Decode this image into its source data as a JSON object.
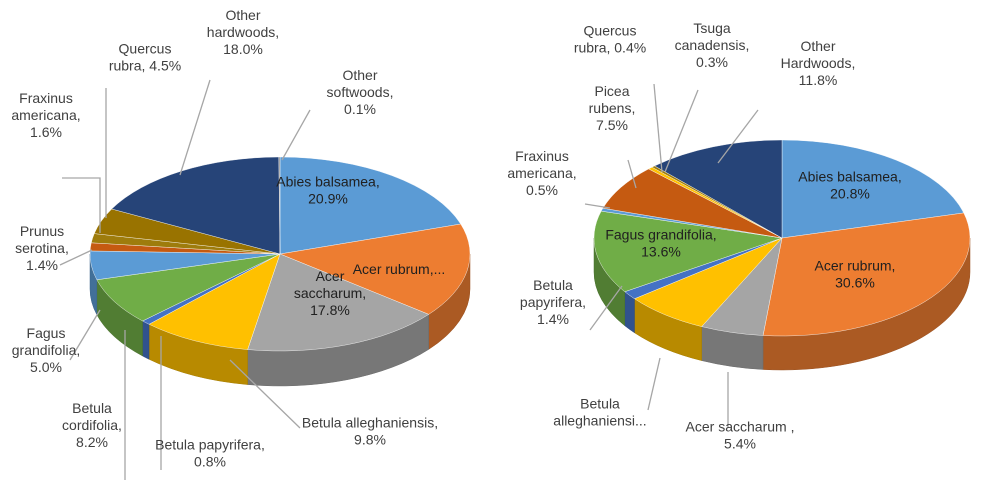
{
  "chart_data": [
    {
      "type": "pie",
      "style": "3d",
      "title": "",
      "series": [
        {
          "categories": [
            "Abies balsamea",
            "Acer rubrum,...",
            "Acer saccharum",
            "Betula alleghaniensis",
            "Betula papyrifera",
            "Betula cordifolia",
            "Fagus grandifolia",
            "Prunus serotina",
            "Fraxinus americana",
            "Quercus rubra",
            "Other hardwoods",
            "Other softwoods"
          ],
          "values": [
            20.9,
            16.4,
            17.8,
            9.8,
            0.8,
            8.2,
            5.0,
            1.4,
            1.6,
            4.5,
            18.0,
            0.1
          ],
          "labels": [
            [
              "Abies balsamea,",
              "20.9%"
            ],
            [
              "Acer rubrum,..."
            ],
            [
              "Acer",
              "saccharum,",
              "17.8%"
            ],
            [
              "Betula alleghaniensis,",
              "9.8%"
            ],
            [
              "Betula papyrifera,",
              "0.8%"
            ],
            [
              "Betula",
              "cordifolia,",
              "8.2%"
            ],
            [
              "Fagus",
              "grandifolia,",
              "5.0%"
            ],
            [
              "Prunus",
              "serotina,",
              "1.4%"
            ],
            [
              "Fraxinus",
              "americana,",
              "1.6%"
            ],
            [
              "Quercus",
              "rubra, 4.5%"
            ],
            [
              "Other",
              "hardwoods,",
              "18.0%"
            ],
            [
              "Other",
              "softwoods,",
              "0.1%"
            ]
          ]
        }
      ]
    },
    {
      "type": "pie",
      "style": "3d",
      "title": "",
      "series": [
        {
          "categories": [
            "Abies balsamea",
            "Acer rubrum",
            "Acer saccharum",
            "Betula alleghaniensis",
            "Betula papyrifera",
            "Fagus grandifolia",
            "Fraxinus americana",
            "Picea rubens",
            "Quercus rubra",
            "Tsuga canadensis",
            "Other Hardwoods"
          ],
          "values": [
            20.8,
            30.6,
            5.4,
            7.3,
            1.4,
            13.6,
            0.5,
            7.5,
            0.4,
            0.3,
            11.8
          ],
          "labels": [
            [
              "Abies balsamea,",
              "20.8%"
            ],
            [
              "Acer rubrum,",
              "30.6%"
            ],
            [
              "Acer saccharum ,",
              "5.4%"
            ],
            [
              "Betula",
              "alleghaniensi..."
            ],
            [
              "Betula",
              "papyrifera,",
              "1.4%"
            ],
            [
              "Fagus grandifolia,",
              "13.6%"
            ],
            [
              "Fraxinus",
              "americana,",
              "0.5%"
            ],
            [
              "Picea",
              "rubens,",
              "7.5%"
            ],
            [
              "Quercus",
              "rubra, 0.4%"
            ],
            [
              "Tsuga",
              "canadensis,",
              "0.3%"
            ],
            [
              "Other",
              "Hardwoods,",
              "11.8%"
            ]
          ]
        }
      ]
    }
  ],
  "colors": [
    "#5b9bd5",
    "#ed7d31",
    "#a5a5a5",
    "#ffc000",
    "#4472c4",
    "#70ad47",
    "#5b9bd5",
    "#c55a11",
    "#9e7c0c",
    "#997300",
    "#264478",
    "#7f7f7f"
  ],
  "colors_right": [
    "#5b9bd5",
    "#ed7d31",
    "#a5a5a5",
    "#ffc000",
    "#4472c4",
    "#70ad47",
    "#5b9bd5",
    "#c55a11",
    "#ffc000",
    "#9e7c0c",
    "#264478"
  ]
}
